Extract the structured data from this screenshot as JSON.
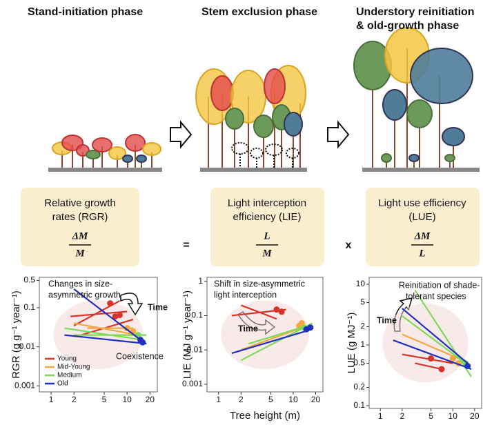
{
  "phases": [
    {
      "title_lines": [
        "Stand-initiation phase"
      ]
    },
    {
      "title_lines": [
        "Stem exclusion phase"
      ]
    },
    {
      "title_lines": [
        "Understory reinitiation",
        "& old-growth phase"
      ]
    }
  ],
  "equation": {
    "boxes": [
      {
        "label_lines": [
          "Relative growth",
          "rates (RGR)"
        ],
        "numerator": "ΔM",
        "denominator": "M"
      },
      {
        "label_lines": [
          "Light interception",
          "efficiency (LIE)"
        ],
        "numerator": "L",
        "denominator": "M"
      },
      {
        "label_lines": [
          "Light use efficiency",
          "(LUE)"
        ],
        "numerator": "ΔM",
        "denominator": "L"
      }
    ],
    "operators": [
      "=",
      "x"
    ]
  },
  "chart_data": [
    {
      "type": "line",
      "ylabel": "RGR (g g⁻¹ year⁻¹)",
      "log_x": true,
      "log_y": true,
      "xlim": [
        0.7,
        25
      ],
      "xticks": [
        1,
        2,
        5,
        10,
        20
      ],
      "ylim": [
        0.0007,
        0.6
      ],
      "yticks": [
        0.001,
        0.01,
        0.1,
        0.5
      ],
      "annotations": [
        "Changes in size-",
        "asymmetric growth",
        "Time",
        "Coexistence"
      ],
      "legend": "lower left",
      "series": [
        {
          "name": "Young",
          "color": "#d7342a",
          "lines": [
            {
              "x": [
                2,
                8
              ],
              "y": [
                0.035,
                0.15
              ]
            },
            {
              "x": [
                1.8,
                10
              ],
              "y": [
                0.06,
                0.08
              ]
            },
            {
              "x": [
                2.5,
                12
              ],
              "y": [
                0.02,
                0.05
              ]
            }
          ],
          "points": {
            "x": [
              6,
              7,
              8
            ],
            "y": [
              0.13,
              0.06,
              0.065
            ]
          }
        },
        {
          "name": "Mid-Young",
          "color": "#f4a640",
          "lines": [
            {
              "x": [
                2,
                14
              ],
              "y": [
                0.04,
                0.02
              ]
            },
            {
              "x": [
                3,
                12
              ],
              "y": [
                0.03,
                0.03
              ]
            }
          ],
          "points": {
            "x": [
              10,
              12
            ],
            "y": [
              0.03,
              0.025
            ]
          }
        },
        {
          "name": "Medium",
          "color": "#7ed957",
          "lines": [
            {
              "x": [
                1.5,
                16
              ],
              "y": [
                0.03,
                0.015
              ]
            },
            {
              "x": [
                2,
                18
              ],
              "y": [
                0.02,
                0.02
              ]
            }
          ],
          "points": {
            "x": [
              14
            ],
            "y": [
              0.02
            ]
          }
        },
        {
          "name": "Old",
          "color": "#1f2fbf",
          "lines": [
            {
              "x": [
                2,
                15
              ],
              "y": [
                0.3,
                0.015
              ]
            },
            {
              "x": [
                1.5,
                18
              ],
              "y": [
                0.02,
                0.012
              ]
            }
          ],
          "points": {
            "x": [
              15,
              16
            ],
            "y": [
              0.015,
              0.013
            ]
          }
        }
      ]
    },
    {
      "type": "line",
      "ylabel": "LIE (MJ g⁻¹ year⁻¹)",
      "xlabel": "Tree height (m)",
      "log_x": true,
      "log_y": true,
      "xlim": [
        0.7,
        25
      ],
      "xticks": [
        1,
        2,
        5,
        10,
        20
      ],
      "ylim": [
        0.0006,
        1.3
      ],
      "yticks": [
        0.001,
        0.01,
        0.1,
        1
      ],
      "annotations": [
        "Shift in size-asymmetric",
        "light interception",
        "Time"
      ],
      "series": [
        {
          "color": "#d7342a",
          "lines": [
            {
              "x": [
                1.5,
                8
              ],
              "y": [
                0.1,
                0.15
              ]
            },
            {
              "x": [
                2,
                6
              ],
              "y": [
                0.2,
                0.08
              ]
            }
          ],
          "points": {
            "x": [
              6,
              7
            ],
            "y": [
              0.15,
              0.13
            ]
          }
        },
        {
          "color": "#f4a640",
          "lines": [
            {
              "x": [
                2,
                15
              ],
              "y": [
                0.01,
                0.05
              ]
            }
          ],
          "points": {
            "x": [
              12,
              13
            ],
            "y": [
              0.05,
              0.06
            ]
          }
        },
        {
          "color": "#7ed957",
          "lines": [
            {
              "x": [
                2,
                18
              ],
              "y": [
                0.005,
                0.06
              ]
            },
            {
              "x": [
                2.5,
                15
              ],
              "y": [
                0.015,
                0.05
              ]
            }
          ],
          "points": {
            "x": [
              14
            ],
            "y": [
              0.045
            ]
          }
        },
        {
          "color": "#1f2fbf",
          "lines": [
            {
              "x": [
                1.5,
                18
              ],
              "y": [
                0.008,
                0.04
              ]
            }
          ],
          "points": {
            "x": [
              15,
              17
            ],
            "y": [
              0.04,
              0.045
            ]
          }
        }
      ]
    },
    {
      "type": "line",
      "ylabel": "LUE (g MJ⁻¹)",
      "log_x": true,
      "log_y": true,
      "xlim": [
        0.7,
        25
      ],
      "xticks": [
        1,
        2,
        5,
        10,
        20
      ],
      "ylim": [
        0.09,
        13
      ],
      "yticks": [
        0.1,
        0.2,
        0.5,
        1,
        2,
        5,
        10
      ],
      "annotations": [
        "Reinitiation of shade-",
        "tolerant species",
        "Time"
      ],
      "series": [
        {
          "color": "#d7342a",
          "lines": [
            {
              "x": [
                2,
                10
              ],
              "y": [
                0.7,
                0.5
              ]
            },
            {
              "x": [
                3,
                7
              ],
              "y": [
                0.5,
                0.4
              ]
            }
          ],
          "points": {
            "x": [
              7,
              5
            ],
            "y": [
              0.4,
              0.6
            ]
          }
        },
        {
          "color": "#f4a640",
          "lines": [
            {
              "x": [
                2,
                12
              ],
              "y": [
                1.5,
                0.6
              ]
            }
          ],
          "points": {
            "x": [
              10,
              12
            ],
            "y": [
              0.6,
              0.5
            ]
          }
        },
        {
          "color": "#7ed957",
          "lines": [
            {
              "x": [
                3,
                18
              ],
              "y": [
                8,
                0.3
              ]
            },
            {
              "x": [
                2,
                15
              ],
              "y": [
                3,
                0.5
              ]
            }
          ],
          "points": {
            "x": [
              15
            ],
            "y": [
              0.5
            ]
          }
        },
        {
          "color": "#1f2fbf",
          "lines": [
            {
              "x": [
                2,
                16
              ],
              "y": [
                4,
                0.5
              ]
            },
            {
              "x": [
                1.5,
                18
              ],
              "y": [
                1.2,
                0.4
              ]
            }
          ],
          "points": {
            "x": [
              16
            ],
            "y": [
              0.45
            ]
          }
        }
      ]
    }
  ]
}
